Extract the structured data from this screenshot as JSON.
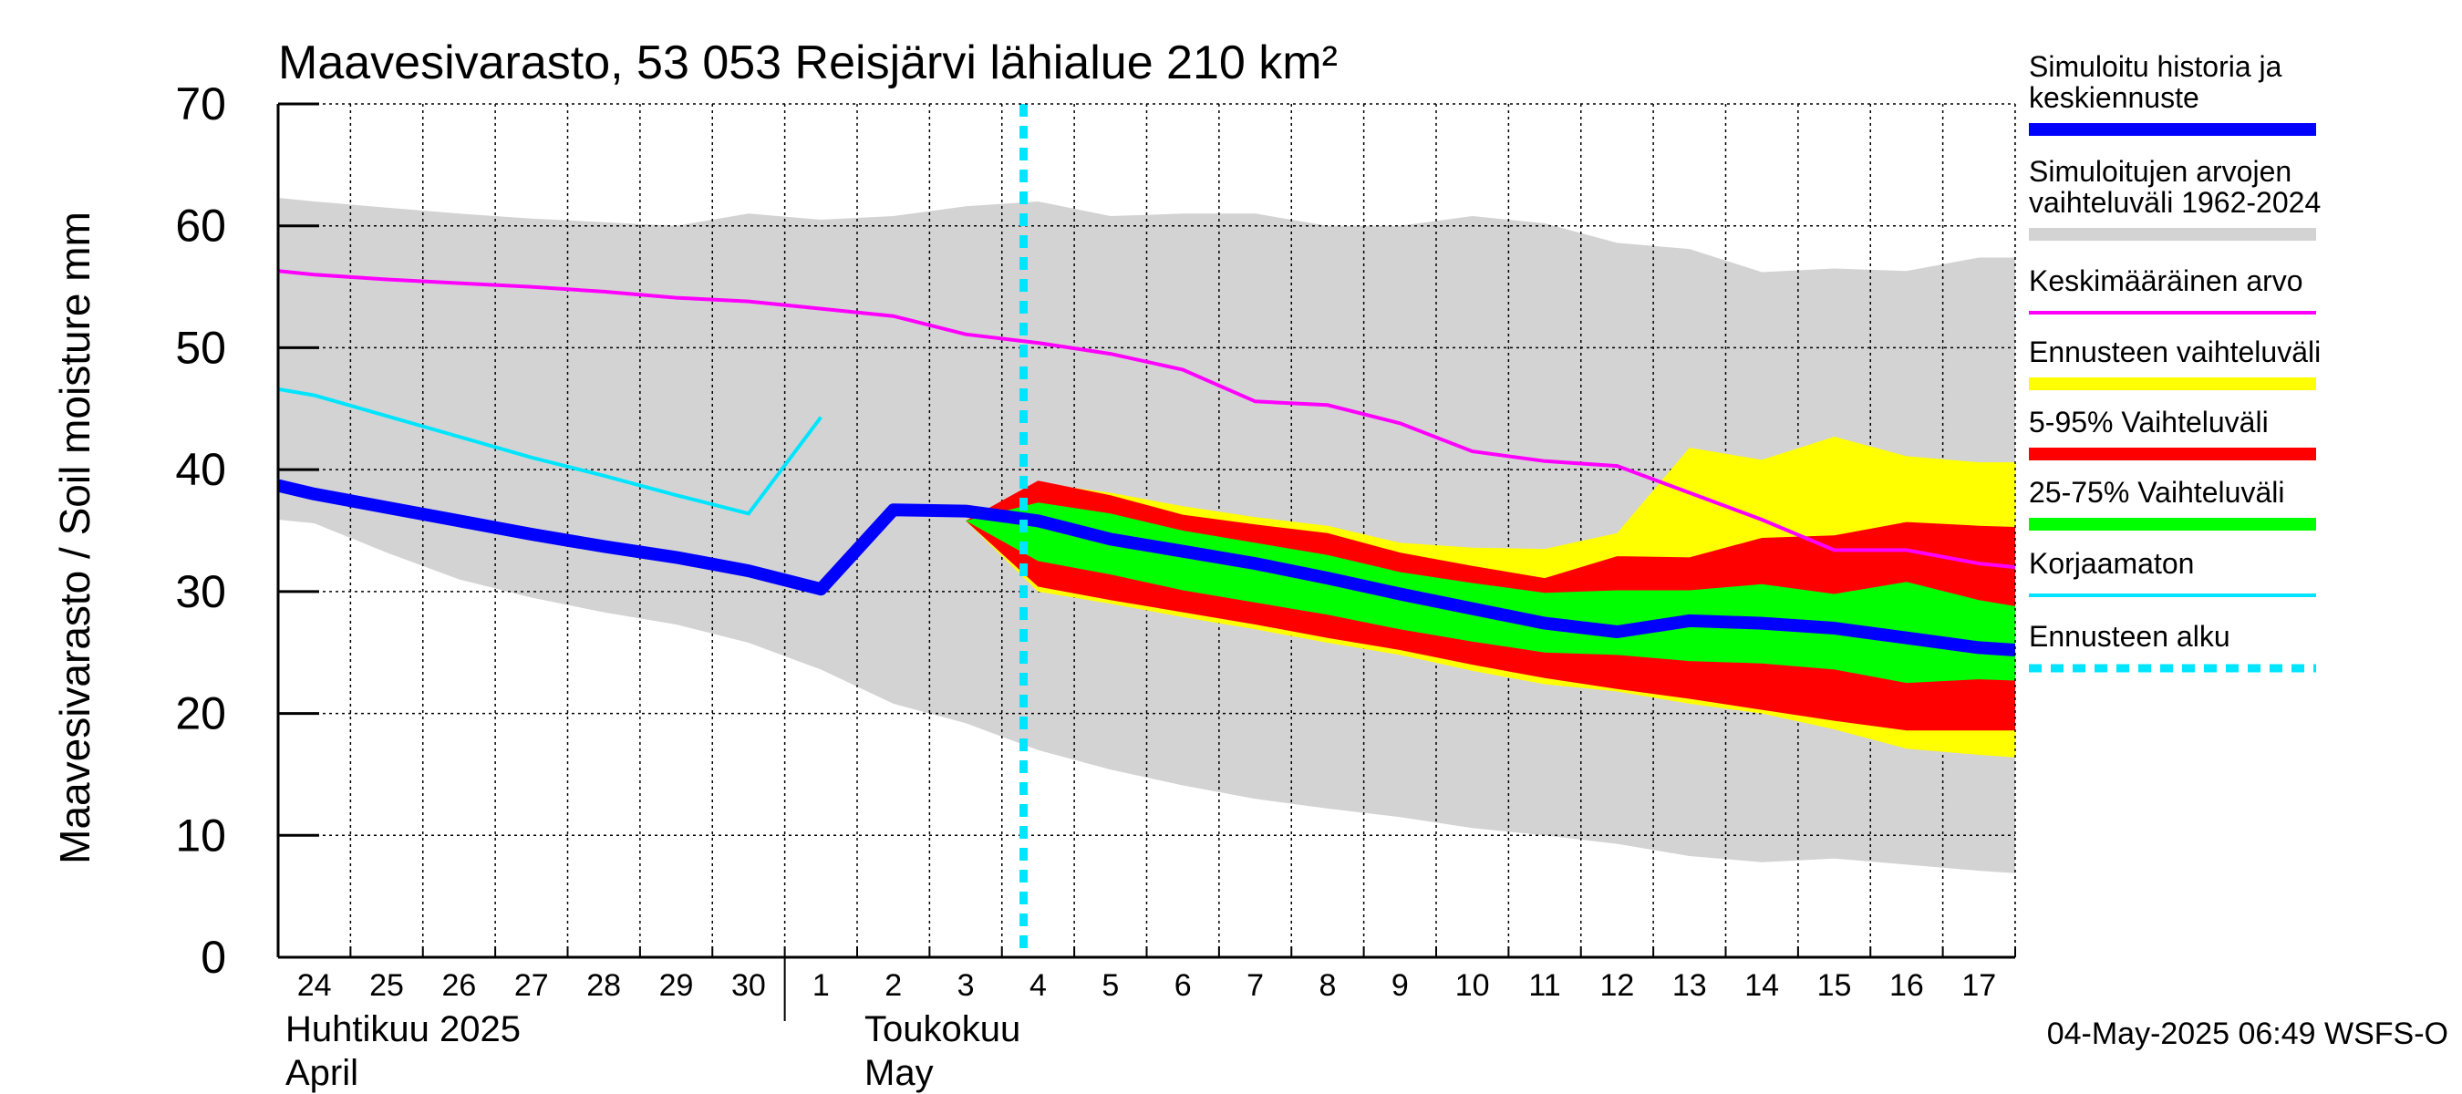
{
  "chart_data": {
    "type": "area",
    "title": "Maavesivarasto, 53 053 Reisjärvi lähialue 210 km²",
    "ylabel": "Maavesivarasto / Soil moisture   mm",
    "ylim": [
      0,
      70
    ],
    "xlim": [
      -0.5,
      23.5
    ],
    "y_ticks": [
      0,
      10,
      20,
      30,
      40,
      50,
      60,
      70
    ],
    "grid": true,
    "legend_position": "right",
    "x_tick_labels": [
      "24",
      "25",
      "26",
      "27",
      "28",
      "29",
      "30",
      "1",
      "2",
      "3",
      "4",
      "5",
      "6",
      "7",
      "8",
      "9",
      "10",
      "11",
      "12",
      "13",
      "14",
      "15",
      "16",
      "17"
    ],
    "month_labels": [
      {
        "x_index": -0.5,
        "lines": [
          "Huhtikuu  2025",
          "April"
        ]
      },
      {
        "x_index": 7.5,
        "lines": [
          "Toukokuu",
          "May"
        ]
      }
    ],
    "month_separator_index": 6.5,
    "forecast_start_index": 9.8,
    "footer": "04-May-2025 06:49 WSFS-O",
    "x": [
      -0.5,
      0,
      1,
      2,
      3,
      4,
      5,
      6,
      7,
      8,
      9,
      10,
      11,
      12,
      13,
      14,
      15,
      16,
      17,
      18,
      19,
      20,
      21,
      22,
      23,
      23.5
    ],
    "historical_range": {
      "name": "Simuloitujen arvojen vaihteluväli 1962-2024",
      "color": "#d3d3d3",
      "upper": [
        62.3,
        62.0,
        61.5,
        61.0,
        60.6,
        60.3,
        60.0,
        61.0,
        60.5,
        60.8,
        61.6,
        62.0,
        60.8,
        61.0,
        61.0,
        60.0,
        60.0,
        60.8,
        60.2,
        58.6,
        58.1,
        56.2,
        56.5,
        56.3,
        57.4,
        57.4
      ],
      "lower": [
        35.9,
        35.6,
        33.2,
        31.0,
        29.5,
        28.3,
        27.3,
        25.8,
        23.6,
        20.8,
        19.2,
        17.0,
        15.4,
        14.1,
        13.0,
        12.2,
        11.5,
        10.6,
        10.0,
        9.3,
        8.3,
        7.8,
        8.1,
        7.6,
        7.1,
        6.9
      ]
    },
    "mean": {
      "name": "Keskimääräinen arvo",
      "color": "#ff00ff",
      "x": [
        -0.5,
        0,
        1,
        2,
        3,
        4,
        5,
        6,
        7,
        8,
        9,
        10,
        11,
        12,
        13,
        14,
        15,
        16,
        17,
        18,
        19,
        20,
        21,
        22,
        23,
        23.5
      ],
      "values": [
        56.3,
        56.0,
        55.6,
        55.3,
        55.0,
        54.6,
        54.1,
        53.8,
        53.2,
        52.6,
        51.1,
        50.4,
        49.5,
        48.2,
        45.6,
        45.3,
        43.8,
        41.5,
        40.7,
        40.3,
        38.1,
        35.9,
        33.4,
        33.4,
        32.3,
        32.0
      ]
    },
    "uncorrected": {
      "name": "Korjaamaton",
      "color": "#00e5ff",
      "x": [
        -0.5,
        0,
        1,
        2,
        3,
        4,
        5,
        6,
        7
      ],
      "values": [
        46.6,
        46.1,
        44.4,
        42.7,
        41.0,
        39.5,
        37.9,
        36.4,
        44.3
      ]
    },
    "simulated": {
      "name": "Simuloitu historia ja keskiennuste",
      "color": "#0000ff",
      "x": [
        -0.5,
        0,
        1,
        2,
        3,
        4,
        5,
        6,
        7,
        8,
        9,
        10,
        11,
        12,
        13,
        14,
        15,
        16,
        17,
        18,
        19,
        20,
        21,
        22,
        23,
        23.5
      ],
      "values": [
        38.7,
        38.0,
        36.9,
        35.8,
        34.7,
        33.7,
        32.8,
        31.7,
        30.2,
        36.7,
        36.6,
        35.8,
        34.3,
        33.3,
        32.3,
        31.1,
        29.8,
        28.6,
        27.4,
        26.7,
        27.6,
        27.4,
        27.0,
        26.2,
        25.4,
        25.2
      ]
    },
    "forecast_x": [
      9,
      10,
      11,
      12,
      13,
      14,
      15,
      16,
      17,
      18,
      19,
      20,
      21,
      22,
      23,
      23.5
    ],
    "forecast_range": {
      "name": "Ennusteen vaihteluväli",
      "color": "#ffff00",
      "upper": [
        35.8,
        38.9,
        38.1,
        37.0,
        36.1,
        35.4,
        34.0,
        33.6,
        33.5,
        34.8,
        41.8,
        40.8,
        42.7,
        41.1,
        40.6,
        40.6
      ],
      "lower": [
        35.8,
        30.0,
        29.0,
        27.9,
        26.9,
        25.8,
        24.8,
        23.5,
        22.4,
        21.8,
        20.8,
        20.0,
        18.7,
        17.1,
        16.6,
        16.4
      ]
    },
    "band_5_95": {
      "name": "5-95% Vaihteluväli",
      "color": "#ff0000",
      "upper": [
        35.8,
        39.1,
        37.9,
        36.3,
        35.5,
        34.8,
        33.2,
        32.1,
        31.1,
        32.9,
        32.8,
        34.4,
        34.6,
        35.7,
        35.4,
        35.3
      ],
      "lower": [
        35.8,
        30.4,
        29.3,
        28.3,
        27.3,
        26.2,
        25.2,
        24.0,
        22.9,
        22.0,
        21.2,
        20.3,
        19.4,
        18.6,
        18.6,
        18.6
      ]
    },
    "band_25_75": {
      "name": "25-75% Vaihteluväli",
      "color": "#00ff00",
      "upper": [
        35.8,
        37.3,
        36.4,
        35.0,
        34.0,
        33.0,
        31.6,
        30.7,
        29.9,
        30.1,
        30.1,
        30.6,
        29.8,
        30.8,
        29.3,
        28.8
      ],
      "lower": [
        35.8,
        32.5,
        31.4,
        30.1,
        29.1,
        28.1,
        26.9,
        25.9,
        25.0,
        24.8,
        24.3,
        24.1,
        23.6,
        22.5,
        22.8,
        22.7
      ]
    },
    "legend": [
      {
        "label_lines": [
          "Simuloitu historia ja",
          "keskiennuste"
        ],
        "color": "#0000ff",
        "style": "thick"
      },
      {
        "label_lines": [
          "Simuloitujen arvojen",
          "vaihteluväli 1962-2024"
        ],
        "color": "#d3d3d3",
        "style": "thick"
      },
      {
        "label_lines": [
          "Keskimääräinen arvo"
        ],
        "color": "#ff00ff",
        "style": "thin"
      },
      {
        "label_lines": [
          "Ennusteen vaihteluväli"
        ],
        "color": "#ffff00",
        "style": "thick"
      },
      {
        "label_lines": [
          "5-95% Vaihteluväli"
        ],
        "color": "#ff0000",
        "style": "thick"
      },
      {
        "label_lines": [
          "25-75% Vaihteluväli"
        ],
        "color": "#00ff00",
        "style": "thick"
      },
      {
        "label_lines": [
          "Korjaamaton"
        ],
        "color": "#00e5ff",
        "style": "thin"
      },
      {
        "label_lines": [
          "Ennusteen alku"
        ],
        "color": "#00e5ff",
        "style": "dashed"
      }
    ]
  }
}
